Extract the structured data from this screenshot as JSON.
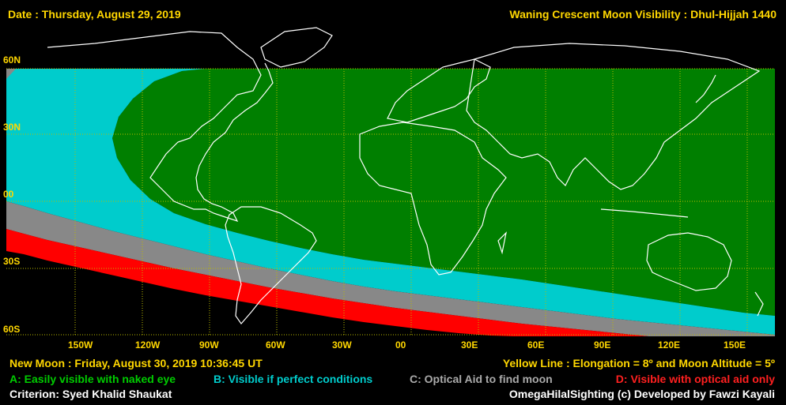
{
  "header": {
    "date": "Date : Thursday, August 29, 2019",
    "title": "Waning Crescent Moon Visibility : Dhul-Hijjah 1440"
  },
  "lat_labels": [
    "60N",
    "30N",
    "00",
    "30S",
    "60S"
  ],
  "lon_labels": [
    "150W",
    "120W",
    "90W",
    "60W",
    "30W",
    "00",
    "30E",
    "60E",
    "90E",
    "120E",
    "150E"
  ],
  "footer": {
    "new_moon": "New Moon : Friday, August 30, 2019  10:36:45  UT",
    "yellow_line": "Yellow Line : Elongation = 8º  and Moon Altitude = 5º",
    "legend_a": "A: Easily visible with naked eye",
    "legend_b": "B: Visible if perfect conditions",
    "legend_c": "C: Optical Aid to find moon",
    "legend_d": "D: Visible with optical aid only",
    "criterion": "Criterion: Syed Khalid Shaukat",
    "credit": "OmegaHilalSighting  (c)  Developed by Fawzi Kayali"
  },
  "colors": {
    "zone_a": "#007F00",
    "zone_b": "#00CCCC",
    "zone_c": "#888888",
    "zone_d": "#FF0000",
    "background": "#000000",
    "label_yellow": "#FFD700",
    "legend_a": "#00CC00",
    "legend_b": "#00CCCC",
    "legend_c": "#AAAAAA",
    "legend_d": "#FF2020",
    "coastline": "#FFFFFF",
    "grid": "#BBBB00"
  }
}
